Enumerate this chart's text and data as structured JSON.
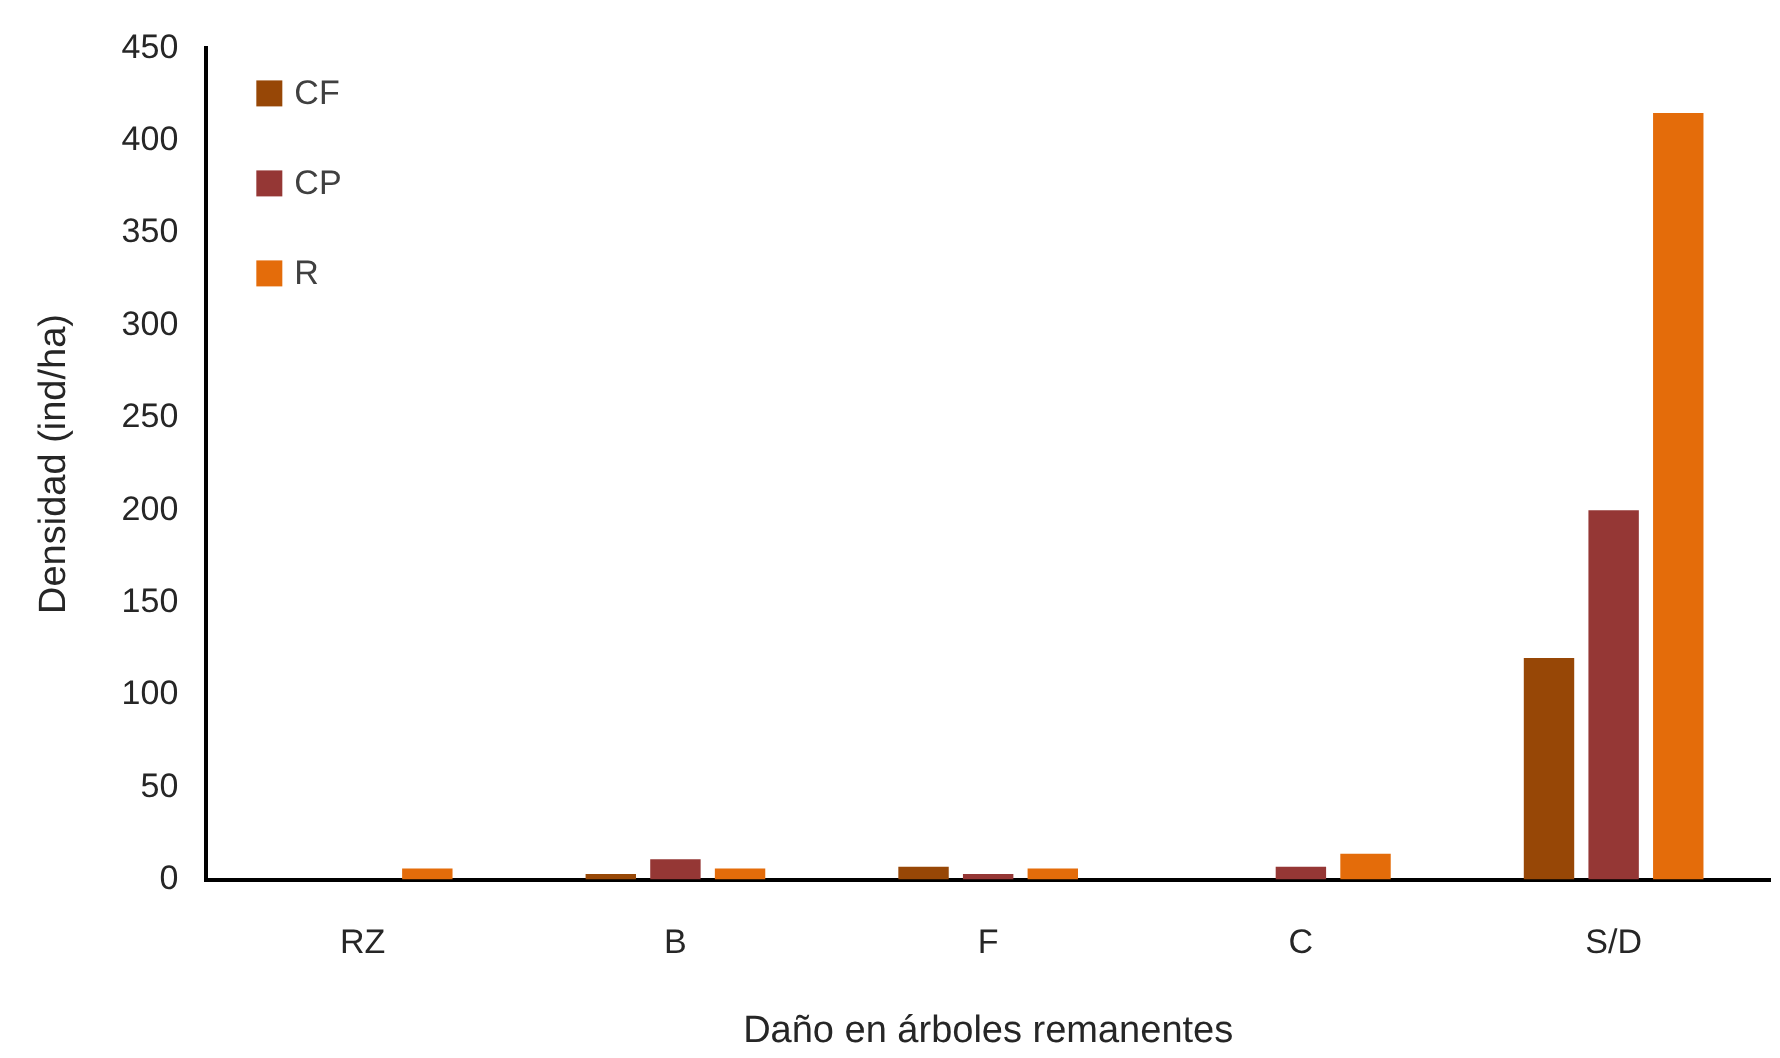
{
  "chart_data": {
    "type": "bar",
    "xlabel": "Daño en árboles remanentes",
    "ylabel": "Densidad (ind/ha)",
    "categories": [
      "RZ",
      "B",
      "F",
      "C",
      "S/D"
    ],
    "series": [
      {
        "name": "CF",
        "color": "#974706",
        "values": [
          0,
          3,
          7,
          0,
          120
        ]
      },
      {
        "name": "CP",
        "color": "#953735",
        "values": [
          0,
          11,
          3,
          7,
          200
        ]
      },
      {
        "name": "R",
        "color": "#e46c0a",
        "values": [
          6,
          6,
          6,
          14,
          415
        ]
      }
    ],
    "ylim": [
      0,
      450
    ],
    "yticks": [
      0,
      50,
      100,
      150,
      200,
      250,
      300,
      350,
      400,
      450
    ],
    "grid": false,
    "legend": "top left"
  }
}
